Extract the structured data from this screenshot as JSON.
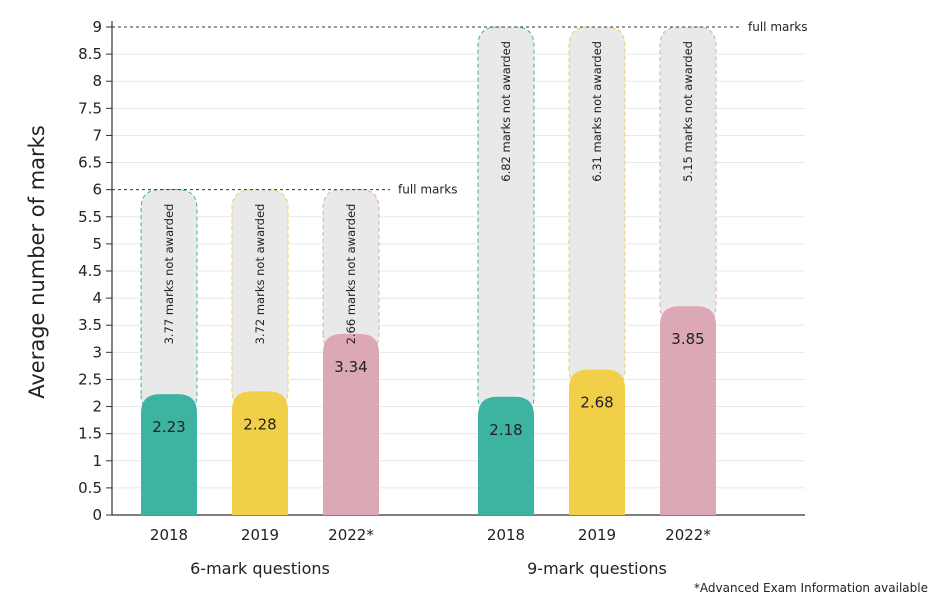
{
  "chart_data": {
    "type": "bar",
    "ylabel": "Average number of marks",
    "ylim": [
      0,
      9
    ],
    "yticks": [
      "0",
      "0.5",
      "1",
      "1.5",
      "2",
      "2.5",
      "3",
      "3.5",
      "4",
      "4.5",
      "5",
      "5.5",
      "6",
      "6.5",
      "7",
      "7.5",
      "8",
      "8.5",
      "9"
    ],
    "full_marks_label": "full marks",
    "footnote": "*Advanced Exam Information available",
    "groups": [
      {
        "name": "6-mark questions",
        "full_marks": 6,
        "bars": [
          {
            "category": "2018",
            "value": 2.23,
            "value_label": "2.23",
            "not_awarded_label": "3.77 marks not awarded",
            "color": "#3db3a2"
          },
          {
            "category": "2019",
            "value": 2.28,
            "value_label": "2.28",
            "not_awarded_label": "3.72 marks not awarded",
            "color": "#f2cf48"
          },
          {
            "category": "2022*",
            "value": 3.34,
            "value_label": "3.34",
            "not_awarded_label": "2.66 marks not awarded",
            "color": "#dca8b6"
          }
        ]
      },
      {
        "name": "9-mark questions",
        "full_marks": 9,
        "bars": [
          {
            "category": "2018",
            "value": 2.18,
            "value_label": "2.18",
            "not_awarded_label": "6.82 marks not awarded",
            "color": "#3db3a2"
          },
          {
            "category": "2019",
            "value": 2.68,
            "value_label": "2.68",
            "not_awarded_label": "6.31 marks not awarded",
            "color": "#f2cf48"
          },
          {
            "category": "2022*",
            "value": 3.85,
            "value_label": "3.85",
            "not_awarded_label": "5.15 marks not awarded",
            "color": "#dca8b6"
          }
        ]
      }
    ],
    "colors": {
      "remainder_fill": "#e9e9e9",
      "grid": "#e8e8e8",
      "axis": "#333333",
      "text": "#222222"
    }
  }
}
